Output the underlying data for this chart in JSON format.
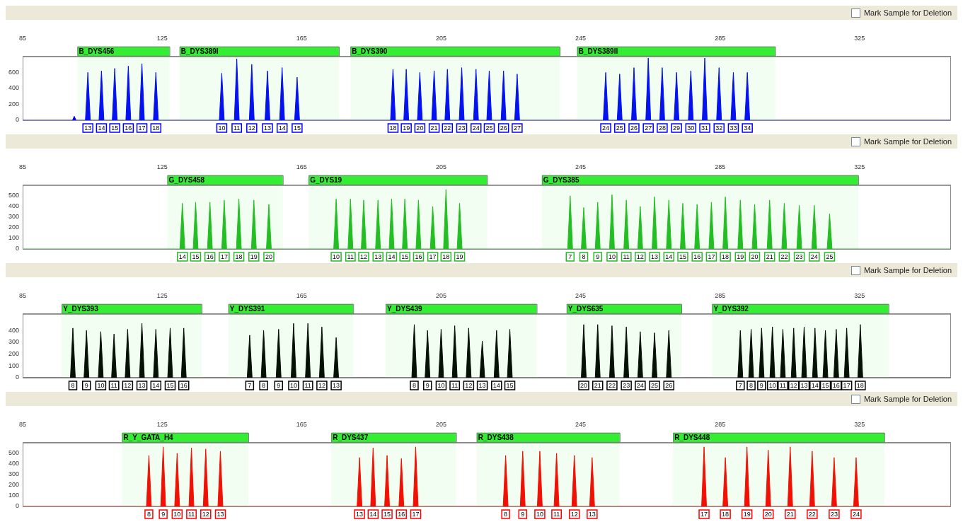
{
  "chart_data": [
    {
      "type": "area",
      "xlim": [
        85,
        351
      ],
      "xticks": [
        85,
        125,
        165,
        205,
        245,
        285,
        325
      ],
      "ylim": [
        0,
        800
      ],
      "yticks": [
        0,
        200,
        400,
        600
      ],
      "series": [
        {
          "color": "#0000ff",
          "x": [
            85,
            99.3,
            99.8,
            100.3,
            103.0,
            103.7,
            104.4,
            106.9,
            107.6,
            108.3,
            110.7,
            111.4,
            112.1,
            114.6,
            115.3,
            116.0,
            118.5,
            119.2,
            119.9,
            122.5,
            123.2,
            123.9,
            141.4,
            142.1,
            142.8,
            145.7,
            146.4,
            147.1,
            150.0,
            150.7,
            151.4,
            154.5,
            155.2,
            155.9,
            158.7,
            159.4,
            160.1,
            163.0,
            163.7,
            164.4,
            190.5,
            191.2,
            191.9,
            194.3,
            195.0,
            195.7,
            198.2,
            198.9,
            199.6,
            202.3,
            203.0,
            203.7,
            206.1,
            206.8,
            207.5,
            210.2,
            210.9,
            211.6,
            214.3,
            215.0,
            215.7,
            218.1,
            218.8,
            219.5,
            222.2,
            222.9,
            223.6,
            226.1,
            226.8,
            227.5,
            251.5,
            252.2,
            252.9,
            255.5,
            256.2,
            256.9,
            259.6,
            260.3,
            261.0,
            263.7,
            264.4,
            265.1,
            267.7,
            268.4,
            269.1,
            271.8,
            272.5,
            273.2,
            275.9,
            276.6,
            277.3,
            279.9,
            280.6,
            281.3,
            284.0,
            284.7,
            285.4,
            288.1,
            288.8,
            289.5,
            292.1,
            292.8,
            293.5,
            351
          ],
          "values": [
            0,
            0,
            50,
            0,
            0,
            600,
            0,
            0,
            620,
            0,
            0,
            650,
            0,
            0,
            680,
            0,
            0,
            710,
            0,
            0,
            600,
            0,
            0,
            590,
            0,
            0,
            770,
            0,
            0,
            700,
            0,
            0,
            620,
            0,
            0,
            660,
            0,
            0,
            540,
            0,
            0,
            640,
            0,
            0,
            640,
            0,
            0,
            600,
            0,
            0,
            620,
            0,
            0,
            640,
            0,
            0,
            660,
            0,
            0,
            640,
            0,
            0,
            620,
            0,
            0,
            620,
            0,
            0,
            580,
            0,
            0,
            600,
            0,
            0,
            580,
            0,
            0,
            660,
            0,
            0,
            780,
            0,
            0,
            660,
            0,
            0,
            600,
            0,
            0,
            620,
            0,
            0,
            780,
            0,
            0,
            660,
            0,
            0,
            600,
            0,
            0,
            600,
            0,
            0
          ]
        }
      ],
      "bands": [
        {
          "axis": "x",
          "from": 100.7,
          "to": 127.1,
          "label": "B_DYS456",
          "color": "#33ee33"
        },
        {
          "axis": "x",
          "from": 130.0,
          "to": 175.7,
          "label": "B_DYS389I",
          "color": "#33ee33"
        },
        {
          "axis": "x",
          "from": 179.0,
          "to": 239.0,
          "label": "B_DYS390",
          "color": "#33ee33"
        },
        {
          "axis": "x",
          "from": 244.0,
          "to": 300.8,
          "label": "B_DYS389II",
          "color": "#33ee33"
        }
      ],
      "annotations": [
        "Mark Sample for Deletion",
        {
          "text": "13",
          "x": 103.7,
          "y": 0
        },
        {
          "text": "14",
          "x": 107.6,
          "y": 0
        },
        {
          "text": "15",
          "x": 111.4,
          "y": 0
        },
        {
          "text": "16",
          "x": 115.3,
          "y": 0
        },
        {
          "text": "17",
          "x": 119.2,
          "y": 0
        },
        {
          "text": "18",
          "x": 123.2,
          "y": 0
        },
        {
          "text": "10",
          "x": 142.1,
          "y": 0
        },
        {
          "text": "11",
          "x": 146.4,
          "y": 0
        },
        {
          "text": "12",
          "x": 150.7,
          "y": 0
        },
        {
          "text": "13",
          "x": 155.2,
          "y": 0
        },
        {
          "text": "14",
          "x": 159.4,
          "y": 0
        },
        {
          "text": "15",
          "x": 163.7,
          "y": 0
        },
        {
          "text": "18",
          "x": 191.2,
          "y": 0
        },
        {
          "text": "19",
          "x": 195.0,
          "y": 0
        },
        {
          "text": "20",
          "x": 198.9,
          "y": 0
        },
        {
          "text": "21",
          "x": 203.0,
          "y": 0
        },
        {
          "text": "22",
          "x": 206.8,
          "y": 0
        },
        {
          "text": "23",
          "x": 210.9,
          "y": 0
        },
        {
          "text": "24",
          "x": 215.0,
          "y": 0
        },
        {
          "text": "25",
          "x": 218.8,
          "y": 0
        },
        {
          "text": "26",
          "x": 222.9,
          "y": 0
        },
        {
          "text": "27",
          "x": 226.8,
          "y": 0
        },
        {
          "text": "24",
          "x": 252.2,
          "y": 0
        },
        {
          "text": "25",
          "x": 256.2,
          "y": 0
        },
        {
          "text": "26",
          "x": 260.3,
          "y": 0
        },
        {
          "text": "27",
          "x": 264.4,
          "y": 0
        },
        {
          "text": "28",
          "x": 268.4,
          "y": 0
        },
        {
          "text": "29",
          "x": 272.5,
          "y": 0
        },
        {
          "text": "30",
          "x": 276.6,
          "y": 0
        },
        {
          "text": "31",
          "x": 280.6,
          "y": 0
        },
        {
          "text": "32",
          "x": 284.7,
          "y": 0
        },
        {
          "text": "33",
          "x": 288.8,
          "y": 0
        },
        {
          "text": "34",
          "x": 292.8,
          "y": 0
        }
      ]
    },
    {
      "type": "area",
      "xlim": [
        85,
        351
      ],
      "xticks": [
        85,
        125,
        165,
        205,
        245,
        285,
        325
      ],
      "ylim": [
        0,
        600
      ],
      "yticks": [
        0,
        100,
        200,
        300,
        400,
        500
      ],
      "series": [
        {
          "color": "#22bb22",
          "x": [
            85,
            130.1,
            130.8,
            131.5,
            133.9,
            134.6,
            135.3,
            138.0,
            138.7,
            139.4,
            142.1,
            142.8,
            143.5,
            146.3,
            147.0,
            147.7,
            150.6,
            151.3,
            152.0,
            154.9,
            155.6,
            156.3,
            174.2,
            174.9,
            175.6,
            178.3,
            179.0,
            179.7,
            182.1,
            182.8,
            183.5,
            186.2,
            186.9,
            187.6,
            190.1,
            190.8,
            191.5,
            193.9,
            194.6,
            195.3,
            197.8,
            198.5,
            199.2,
            201.9,
            202.6,
            203.3,
            205.7,
            206.4,
            207.1,
            209.6,
            210.3,
            211.0,
            241.3,
            242.0,
            242.7,
            245.2,
            245.9,
            246.6,
            249.2,
            249.9,
            250.6,
            253.3,
            254.0,
            254.7,
            257.4,
            258.1,
            258.8,
            261.4,
            262.1,
            262.8,
            265.5,
            266.2,
            266.9,
            269.6,
            270.3,
            271.0,
            273.6,
            274.3,
            275.0,
            277.7,
            278.4,
            279.1,
            281.8,
            282.5,
            283.2,
            285.8,
            286.5,
            287.2,
            290.1,
            290.8,
            291.5,
            294.2,
            294.9,
            295.6,
            298.5,
            299.2,
            299.9,
            302.7,
            303.4,
            304.1,
            307.0,
            307.7,
            308.4,
            311.3,
            312.0,
            312.7,
            315.7,
            316.4,
            317.1,
            351
          ],
          "values": [
            0,
            0,
            430,
            0,
            0,
            440,
            0,
            0,
            440,
            0,
            0,
            460,
            0,
            0,
            470,
            0,
            0,
            460,
            0,
            0,
            420,
            0,
            0,
            470,
            0,
            0,
            470,
            0,
            0,
            460,
            0,
            0,
            460,
            0,
            0,
            470,
            0,
            0,
            470,
            0,
            0,
            460,
            0,
            0,
            400,
            0,
            0,
            560,
            0,
            0,
            430,
            0,
            0,
            500,
            0,
            0,
            390,
            0,
            0,
            440,
            0,
            0,
            510,
            0,
            0,
            460,
            0,
            0,
            400,
            0,
            0,
            490,
            0,
            0,
            460,
            0,
            0,
            430,
            0,
            0,
            420,
            0,
            0,
            440,
            0,
            0,
            490,
            0,
            0,
            460,
            0,
            0,
            420,
            0,
            0,
            460,
            0,
            0,
            430,
            0,
            0,
            410,
            0,
            0,
            410,
            0,
            0,
            330,
            0,
            0
          ]
        }
      ],
      "bands": [
        {
          "axis": "x",
          "from": 126.5,
          "to": 159.6,
          "label": "G_DYS458",
          "color": "#33ee33"
        },
        {
          "axis": "x",
          "from": 167.0,
          "to": 218.2,
          "label": "G_DYS19",
          "color": "#33ee33"
        },
        {
          "axis": "x",
          "from": 233.9,
          "to": 324.6,
          "label": "G_DYS385",
          "color": "#33ee33"
        }
      ],
      "annotations": [
        "Mark Sample for Deletion",
        {
          "text": "14",
          "x": 130.8,
          "y": 0
        },
        {
          "text": "15",
          "x": 134.6,
          "y": 0
        },
        {
          "text": "16",
          "x": 138.7,
          "y": 0
        },
        {
          "text": "17",
          "x": 142.8,
          "y": 0
        },
        {
          "text": "18",
          "x": 147.0,
          "y": 0
        },
        {
          "text": "19",
          "x": 151.3,
          "y": 0
        },
        {
          "text": "20",
          "x": 155.6,
          "y": 0
        },
        {
          "text": "10",
          "x": 174.9,
          "y": 0
        },
        {
          "text": "11",
          "x": 179.0,
          "y": 0
        },
        {
          "text": "12",
          "x": 182.8,
          "y": 0
        },
        {
          "text": "13",
          "x": 186.9,
          "y": 0
        },
        {
          "text": "14",
          "x": 190.8,
          "y": 0
        },
        {
          "text": "15",
          "x": 194.6,
          "y": 0
        },
        {
          "text": "16",
          "x": 198.5,
          "y": 0
        },
        {
          "text": "17",
          "x": 202.6,
          "y": 0
        },
        {
          "text": "18",
          "x": 206.4,
          "y": 0
        },
        {
          "text": "19",
          "x": 210.3,
          "y": 0
        },
        {
          "text": "7",
          "x": 242.0,
          "y": 0
        },
        {
          "text": "8",
          "x": 245.9,
          "y": 0
        },
        {
          "text": "9",
          "x": 249.9,
          "y": 0
        },
        {
          "text": "10",
          "x": 254.0,
          "y": 0
        },
        {
          "text": "11",
          "x": 258.1,
          "y": 0
        },
        {
          "text": "12",
          "x": 262.1,
          "y": 0
        },
        {
          "text": "13",
          "x": 266.2,
          "y": 0
        },
        {
          "text": "14",
          "x": 270.3,
          "y": 0
        },
        {
          "text": "15",
          "x": 274.3,
          "y": 0
        },
        {
          "text": "16",
          "x": 278.4,
          "y": 0
        },
        {
          "text": "17",
          "x": 282.5,
          "y": 0
        },
        {
          "text": "18",
          "x": 286.5,
          "y": 0
        },
        {
          "text": "19",
          "x": 290.8,
          "y": 0
        },
        {
          "text": "20",
          "x": 294.9,
          "y": 0
        },
        {
          "text": "21",
          "x": 299.2,
          "y": 0
        },
        {
          "text": "22",
          "x": 303.4,
          "y": 0
        },
        {
          "text": "23",
          "x": 307.7,
          "y": 0
        },
        {
          "text": "24",
          "x": 312.0,
          "y": 0
        },
        {
          "text": "25",
          "x": 316.4,
          "y": 0
        }
      ]
    },
    {
      "type": "area",
      "xlim": [
        85,
        351
      ],
      "xticks": [
        85,
        125,
        165,
        205,
        245,
        285,
        325
      ],
      "ylim": [
        0,
        540
      ],
      "yticks": [
        0,
        100,
        200,
        300,
        400
      ],
      "series": [
        {
          "color": "#000000",
          "x": [
            85,
            98.7,
            99.4,
            100.1,
            102.6,
            103.3,
            104.0,
            106.7,
            107.4,
            108.1,
            110.5,
            111.2,
            111.9,
            114.4,
            115.1,
            115.8,
            118.5,
            119.2,
            119.9,
            122.5,
            123.2,
            123.9,
            126.6,
            127.3,
            128.0,
            130.5,
            131.2,
            131.9,
            149.4,
            150.1,
            150.8,
            153.4,
            154.1,
            154.8,
            157.7,
            158.4,
            159.1,
            162.0,
            162.7,
            163.4,
            166.1,
            166.8,
            167.5,
            170.1,
            170.8,
            171.5,
            174.2,
            174.9,
            175.6,
            196.6,
            197.3,
            198.0,
            200.4,
            201.1,
            201.8,
            204.3,
            205.0,
            205.7,
            208.2,
            208.9,
            209.6,
            212.2,
            212.9,
            213.6,
            216.1,
            216.8,
            217.5,
            220.2,
            220.9,
            221.6,
            224.0,
            224.7,
            225.4,
            245.2,
            245.9,
            246.6,
            249.2,
            249.9,
            250.6,
            253.3,
            254.0,
            254.7,
            257.4,
            258.1,
            258.8,
            261.4,
            262.1,
            262.8,
            265.5,
            266.2,
            266.9,
            269.6,
            270.3,
            271.0,
            290.1,
            290.8,
            291.5,
            293.2,
            293.9,
            294.6,
            296.2,
            296.9,
            297.6,
            299.3,
            300.0,
            300.7,
            302.3,
            303.0,
            303.7,
            305.4,
            306.1,
            306.8,
            308.4,
            309.1,
            309.8,
            311.5,
            312.2,
            312.9,
            314.5,
            315.2,
            315.9,
            317.6,
            318.3,
            319.0,
            320.6,
            321.3,
            322.0,
            324.5,
            325.2,
            325.9,
            351
          ],
          "values": [
            0,
            0,
            420,
            0,
            0,
            400,
            0,
            0,
            390,
            0,
            0,
            370,
            0,
            0,
            410,
            0,
            0,
            460,
            0,
            0,
            410,
            0,
            0,
            420,
            0,
            0,
            420,
            0,
            0,
            360,
            0,
            0,
            400,
            0,
            0,
            410,
            0,
            0,
            460,
            0,
            0,
            460,
            0,
            0,
            430,
            0,
            0,
            340,
            0,
            0,
            450,
            0,
            0,
            400,
            0,
            0,
            410,
            0,
            0,
            440,
            0,
            0,
            420,
            0,
            0,
            310,
            0,
            0,
            400,
            0,
            0,
            410,
            0,
            0,
            450,
            0,
            0,
            450,
            0,
            0,
            440,
            0,
            0,
            430,
            0,
            0,
            390,
            0,
            0,
            380,
            0,
            0,
            400,
            0,
            0,
            400,
            0,
            0,
            410,
            0,
            0,
            420,
            0,
            0,
            430,
            0,
            0,
            410,
            0,
            0,
            420,
            0,
            0,
            430,
            0,
            0,
            420,
            0,
            0,
            400,
            0,
            0,
            410,
            0,
            0,
            420,
            0,
            0,
            450,
            0,
            0
          ]
        }
      ],
      "bands": [
        {
          "axis": "x",
          "from": 96.2,
          "to": 136.3,
          "label": "Y_DYS393",
          "color": "#33ee33"
        },
        {
          "axis": "x",
          "from": 144.0,
          "to": 179.8,
          "label": "Y_DYS391",
          "color": "#33ee33"
        },
        {
          "axis": "x",
          "from": 189.1,
          "to": 232.4,
          "label": "Y_DYS439",
          "color": "#33ee33"
        },
        {
          "axis": "x",
          "from": 241.0,
          "to": 273.9,
          "label": "Y_DYS635",
          "color": "#33ee33"
        },
        {
          "axis": "x",
          "from": 282.7,
          "to": 333.3,
          "label": "Y_DYS392",
          "color": "#33ee33"
        }
      ],
      "annotations": [
        "Mark Sample for Deletion",
        {
          "text": "8",
          "x": 99.4,
          "y": 0
        },
        {
          "text": "9",
          "x": 103.3,
          "y": 0
        },
        {
          "text": "10",
          "x": 107.4,
          "y": 0
        },
        {
          "text": "11",
          "x": 111.2,
          "y": 0
        },
        {
          "text": "12",
          "x": 115.1,
          "y": 0
        },
        {
          "text": "13",
          "x": 119.2,
          "y": 0
        },
        {
          "text": "14",
          "x": 123.2,
          "y": 0
        },
        {
          "text": "15",
          "x": 127.3,
          "y": 0
        },
        {
          "text": "16",
          "x": 131.2,
          "y": 0
        },
        {
          "text": "7",
          "x": 150.1,
          "y": 0
        },
        {
          "text": "8",
          "x": 154.1,
          "y": 0
        },
        {
          "text": "9",
          "x": 158.4,
          "y": 0
        },
        {
          "text": "10",
          "x": 162.7,
          "y": 0
        },
        {
          "text": "11",
          "x": 166.8,
          "y": 0
        },
        {
          "text": "12",
          "x": 170.8,
          "y": 0
        },
        {
          "text": "13",
          "x": 174.9,
          "y": 0
        },
        {
          "text": "8",
          "x": 197.3,
          "y": 0
        },
        {
          "text": "9",
          "x": 201.1,
          "y": 0
        },
        {
          "text": "10",
          "x": 205.0,
          "y": 0
        },
        {
          "text": "11",
          "x": 208.9,
          "y": 0
        },
        {
          "text": "12",
          "x": 212.9,
          "y": 0
        },
        {
          "text": "13",
          "x": 216.8,
          "y": 0
        },
        {
          "text": "14",
          "x": 220.9,
          "y": 0
        },
        {
          "text": "15",
          "x": 224.7,
          "y": 0
        },
        {
          "text": "20",
          "x": 245.9,
          "y": 0
        },
        {
          "text": "21",
          "x": 249.9,
          "y": 0
        },
        {
          "text": "22",
          "x": 254.0,
          "y": 0
        },
        {
          "text": "23",
          "x": 258.1,
          "y": 0
        },
        {
          "text": "24",
          "x": 262.1,
          "y": 0
        },
        {
          "text": "25",
          "x": 266.2,
          "y": 0
        },
        {
          "text": "26",
          "x": 270.3,
          "y": 0
        },
        {
          "text": "7",
          "x": 290.8,
          "y": 0
        },
        {
          "text": "8",
          "x": 293.9,
          "y": 0
        },
        {
          "text": "9",
          "x": 296.9,
          "y": 0
        },
        {
          "text": "10",
          "x": 300.0,
          "y": 0
        },
        {
          "text": "11",
          "x": 303.0,
          "y": 0
        },
        {
          "text": "12",
          "x": 306.1,
          "y": 0
        },
        {
          "text": "13",
          "x": 309.1,
          "y": 0
        },
        {
          "text": "14",
          "x": 312.2,
          "y": 0
        },
        {
          "text": "15",
          "x": 315.2,
          "y": 0
        },
        {
          "text": "16",
          "x": 318.3,
          "y": 0
        },
        {
          "text": "17",
          "x": 321.3,
          "y": 0
        },
        {
          "text": "18",
          "x": 325.2,
          "y": 0
        }
      ]
    },
    {
      "type": "area",
      "xlim": [
        85,
        351
      ],
      "xticks": [
        85,
        125,
        165,
        205,
        245,
        285,
        325
      ],
      "ylim": [
        0,
        600
      ],
      "yticks": [
        0,
        100,
        200,
        300,
        400,
        500
      ],
      "series": [
        {
          "color": "#ff0000",
          "x": [
            85,
            120.5,
            121.2,
            121.9,
            124.6,
            125.3,
            126.0,
            128.6,
            129.3,
            130.0,
            132.7,
            133.4,
            134.1,
            136.8,
            137.5,
            138.2,
            141.0,
            141.7,
            142.4,
            180.9,
            181.6,
            182.3,
            184.8,
            185.5,
            186.2,
            188.8,
            189.5,
            190.2,
            192.9,
            193.6,
            194.3,
            197.0,
            197.7,
            198.4,
            222.8,
            223.5,
            224.2,
            227.7,
            228.4,
            229.1,
            232.6,
            233.3,
            234.0,
            237.4,
            238.1,
            238.8,
            242.5,
            243.2,
            243.9,
            247.6,
            248.3,
            249.0,
            279.7,
            280.4,
            281.1,
            285.8,
            286.5,
            287.2,
            292.0,
            292.7,
            293.4,
            298.1,
            298.8,
            299.5,
            304.4,
            305.1,
            305.8,
            310.7,
            311.4,
            312.1,
            317.0,
            317.7,
            318.4,
            323.3,
            324.0,
            324.7,
            351
          ],
          "values": [
            0,
            0,
            480,
            0,
            0,
            560,
            0,
            0,
            500,
            0,
            0,
            550,
            0,
            0,
            540,
            0,
            0,
            520,
            0,
            0,
            460,
            0,
            0,
            550,
            0,
            0,
            480,
            0,
            0,
            450,
            0,
            0,
            560,
            0,
            0,
            480,
            0,
            0,
            520,
            0,
            0,
            520,
            0,
            0,
            500,
            0,
            0,
            480,
            0,
            0,
            460,
            0,
            0,
            560,
            0,
            0,
            460,
            0,
            0,
            560,
            0,
            0,
            530,
            0,
            0,
            560,
            0,
            0,
            520,
            0,
            0,
            460,
            0,
            0,
            460,
            0,
            0
          ]
        }
      ],
      "bands": [
        {
          "axis": "x",
          "from": 113.5,
          "to": 149.7,
          "label": "R_Y_GATA_H4",
          "color": "#33ee33"
        },
        {
          "axis": "x",
          "from": 173.5,
          "to": 209.3,
          "label": "R_DYS437",
          "color": "#33ee33"
        },
        {
          "axis": "x",
          "from": 215.2,
          "to": 256.2,
          "label": "R_DYS438",
          "color": "#33ee33"
        },
        {
          "axis": "x",
          "from": 271.5,
          "to": 332.1,
          "label": "R_DYS448",
          "color": "#33ee33"
        }
      ],
      "annotations": [
        "Mark Sample for Deletion",
        {
          "text": "8",
          "x": 121.2,
          "y": 0
        },
        {
          "text": "9",
          "x": 125.3,
          "y": 0
        },
        {
          "text": "10",
          "x": 129.3,
          "y": 0
        },
        {
          "text": "11",
          "x": 133.4,
          "y": 0
        },
        {
          "text": "12",
          "x": 137.5,
          "y": 0
        },
        {
          "text": "13",
          "x": 141.7,
          "y": 0
        },
        {
          "text": "13",
          "x": 181.6,
          "y": 0
        },
        {
          "text": "14",
          "x": 185.5,
          "y": 0
        },
        {
          "text": "15",
          "x": 189.5,
          "y": 0
        },
        {
          "text": "16",
          "x": 193.6,
          "y": 0
        },
        {
          "text": "17",
          "x": 197.7,
          "y": 0
        },
        {
          "text": "8",
          "x": 223.5,
          "y": 0
        },
        {
          "text": "9",
          "x": 228.4,
          "y": 0
        },
        {
          "text": "10",
          "x": 233.3,
          "y": 0
        },
        {
          "text": "11",
          "x": 238.1,
          "y": 0
        },
        {
          "text": "12",
          "x": 243.2,
          "y": 0
        },
        {
          "text": "13",
          "x": 248.3,
          "y": 0
        },
        {
          "text": "17",
          "x": 280.4,
          "y": 0
        },
        {
          "text": "18",
          "x": 286.5,
          "y": 0
        },
        {
          "text": "19",
          "x": 292.7,
          "y": 0
        },
        {
          "text": "20",
          "x": 298.8,
          "y": 0
        },
        {
          "text": "21",
          "x": 305.1,
          "y": 0
        },
        {
          "text": "22",
          "x": 311.4,
          "y": 0
        },
        {
          "text": "23",
          "x": 317.7,
          "y": 0
        },
        {
          "text": "24",
          "x": 324.0,
          "y": 0
        }
      ]
    }
  ]
}
